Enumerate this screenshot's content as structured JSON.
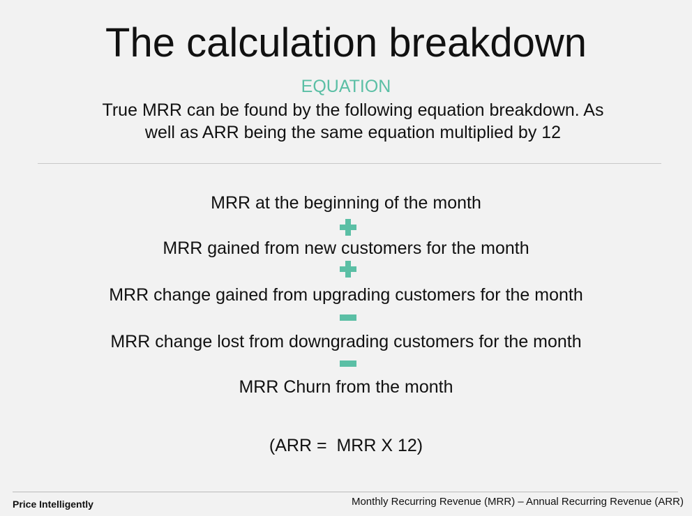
{
  "header": {
    "title": "The calculation breakdown",
    "subtitle": "EQUATION",
    "description": [
      "True MRR can be found by the following equation breakdown. As",
      "well as ARR being the same equation multiplied by 12"
    ]
  },
  "equation": {
    "terms": [
      "MRR at the beginning of the month",
      "MRR gained from new customers for the month",
      "MRR change gained from upgrading customers for the month",
      "MRR change lost from downgrading customers for the month",
      "MRR Churn from the month"
    ],
    "note": "(ARR =  MRR X 12)"
  },
  "footer": {
    "brand": "Price Intelligently",
    "legend": "Monthly Recurring Revenue (MRR) – Annual Recurring Revenue (ARR)"
  }
}
